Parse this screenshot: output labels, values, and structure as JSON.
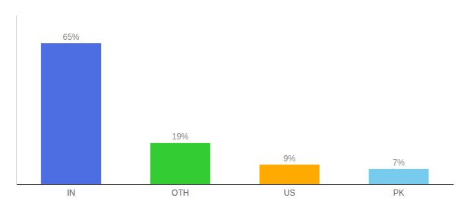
{
  "chart_data": {
    "type": "bar",
    "categories": [
      "IN",
      "OTH",
      "US",
      "PK"
    ],
    "values": [
      65,
      19,
      9,
      7
    ],
    "value_labels": [
      "65%",
      "19%",
      "9%",
      "7%"
    ],
    "colors": [
      "#4d6ee3",
      "#33cc33",
      "#ffaa00",
      "#77ccee"
    ],
    "ylim": [
      0,
      78
    ],
    "data_labels": true,
    "tick_labels": "x",
    "grid": false
  }
}
